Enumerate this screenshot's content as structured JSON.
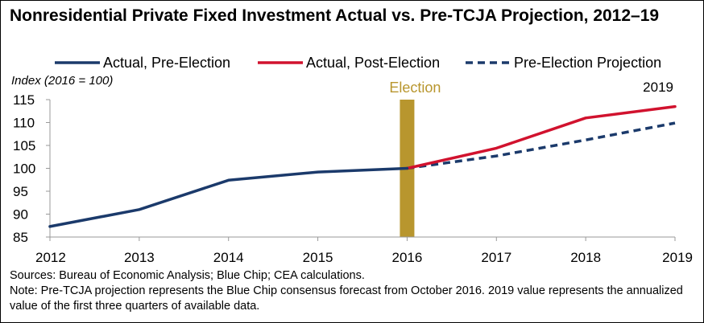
{
  "chart_data": {
    "type": "line",
    "title": "Nonresidential Private Fixed Investment Actual vs. Pre-TCJA Projection, 2012–19",
    "ylabel": "Index (2016 = 100)",
    "xlabel": "",
    "categories": [
      "2012",
      "2013",
      "2014",
      "2015",
      "2016",
      "2017",
      "2018",
      "2019"
    ],
    "x": [
      2012,
      2013,
      2014,
      2015,
      2016,
      2017,
      2018,
      2019
    ],
    "xlim": [
      2012,
      2019
    ],
    "ylim": [
      85,
      115
    ],
    "yticks": [
      "85",
      "90",
      "95",
      "100",
      "105",
      "110",
      "115"
    ],
    "grid": false,
    "legend_position": "top",
    "series": [
      {
        "name": "Actual, Pre-Election",
        "color": "#1b3a6b",
        "style": "solid",
        "x": [
          2012,
          2013,
          2014,
          2015,
          2016
        ],
        "values": [
          87.3,
          91.0,
          97.4,
          99.2,
          100.0
        ]
      },
      {
        "name": "Actual, Post-Election",
        "color": "#d1122e",
        "style": "solid",
        "x": [
          2016,
          2017,
          2018,
          2019
        ],
        "values": [
          100.0,
          104.4,
          111.0,
          113.5
        ]
      },
      {
        "name": "Pre-Election Projection",
        "color": "#1b3a6b",
        "style": "dashed",
        "x": [
          2016,
          2017,
          2018,
          2019
        ],
        "values": [
          100.0,
          102.7,
          106.2,
          109.9
        ]
      }
    ],
    "annotations": [
      {
        "label": "Election",
        "x": 2016,
        "color": "#b8962e"
      },
      {
        "label": "2019",
        "x": 2019
      }
    ]
  },
  "notes": {
    "sources": "Sources: Bureau of Economic Analysis; Blue Chip; CEA calculations.",
    "note": "Note: Pre-TCJA projection represents the Blue Chip consensus forecast from October 2016. 2019 value represents the annualized value of the first three quarters of available data."
  }
}
